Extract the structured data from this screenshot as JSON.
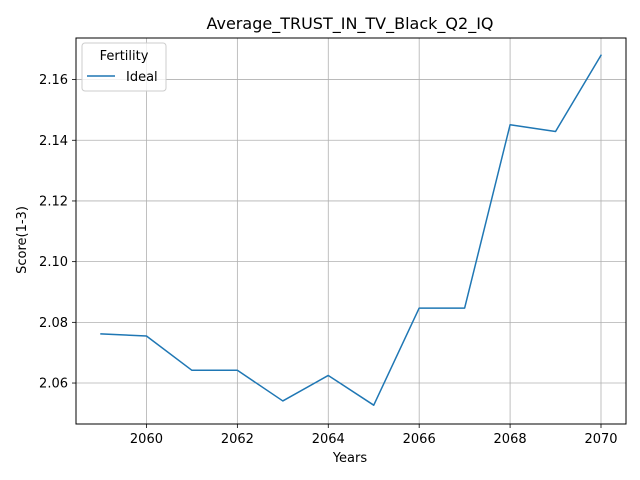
{
  "chart_data": {
    "type": "line",
    "title": "Average_TRUST_IN_TV_Black_Q2_IQ",
    "xlabel": "Years",
    "ylabel": "Score(1-3)",
    "xlim": [
      2058.45,
      2070.55
    ],
    "ylim": [
      2.0465,
      2.1737
    ],
    "xticks": [
      2060,
      2062,
      2064,
      2066,
      2068,
      2070
    ],
    "yticks": [
      2.06,
      2.08,
      2.1,
      2.12,
      2.14,
      2.16
    ],
    "xtick_labels": [
      "2060",
      "2062",
      "2064",
      "2066",
      "2068",
      "2070"
    ],
    "ytick_labels": [
      "2.06",
      "2.08",
      "2.10",
      "2.12",
      "2.14",
      "2.16"
    ],
    "grid": true,
    "legend": {
      "title": "Fertility",
      "placement": "top-left"
    },
    "series": [
      {
        "name": "Ideal",
        "color": "#1f77b4",
        "x": [
          2059,
          2060,
          2061,
          2062,
          2063,
          2064,
          2065,
          2066,
          2067,
          2068,
          2069,
          2070
        ],
        "y": [
          2.0762,
          2.0755,
          2.0642,
          2.0642,
          2.0541,
          2.0625,
          2.0527,
          2.0847,
          2.0847,
          2.1451,
          2.1429,
          2.168
        ]
      }
    ]
  }
}
